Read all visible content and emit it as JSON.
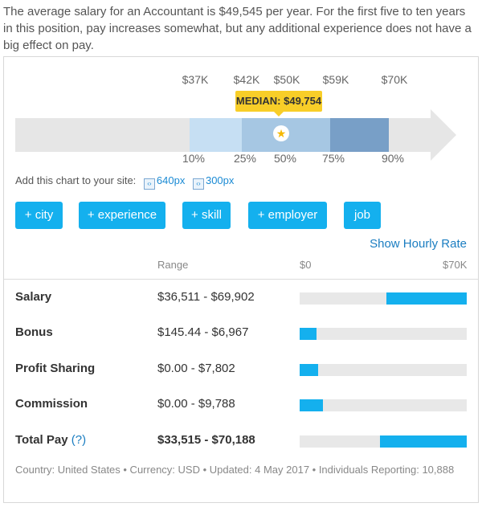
{
  "intro": "The average salary for an Accountant is $49,545 per year. For the first five to ten years in this position, pay increases somewhat, but any additional experience does not have a big effect on pay.",
  "chart": {
    "top_ticks": [
      "$37K",
      "$42K",
      "$50K",
      "$59K",
      "$70K"
    ],
    "bottom_ticks": [
      "10%",
      "25%",
      "50%",
      "75%",
      "90%"
    ],
    "median_label": "MEDIAN: $49,754",
    "colors": {
      "band": "#e6e6e6",
      "p10_25": "#c6dff3",
      "p25_75": "#a6c7e3",
      "p75_90": "#789fc7",
      "median": "#f8ce28"
    }
  },
  "add_chart": {
    "label": "Add this chart to your site:",
    "link_640": "640px",
    "link_300": "300px"
  },
  "filters": [
    "+ city",
    "+ experience",
    "+ skill",
    "+ employer",
    "job"
  ],
  "hourly_link": "Show Hourly Rate",
  "table": {
    "range_header": "Range",
    "scale_min": "$0",
    "scale_max": "$70K",
    "rows": [
      {
        "label": "Salary",
        "range": "$36,511 - $69,902",
        "min": 36511,
        "max": 69902
      },
      {
        "label": "Bonus",
        "range": "$145.44 - $6,967",
        "min": 145.44,
        "max": 6967
      },
      {
        "label": "Profit Sharing",
        "range": "$0.00 - $7,802",
        "min": 0,
        "max": 7802
      },
      {
        "label": "Commission",
        "range": "$0.00 - $9,788",
        "min": 0,
        "max": 9788
      },
      {
        "label": "Total Pay",
        "help": "(?)",
        "range": "$33,515 - $70,188",
        "min": 33515,
        "max": 70188
      }
    ],
    "scale_max_value": 70000
  },
  "footer": "Country: United States • Currency: USD • Updated: 4 May 2017 • Individuals Reporting: 10,888",
  "accent": "#14b0ee"
}
